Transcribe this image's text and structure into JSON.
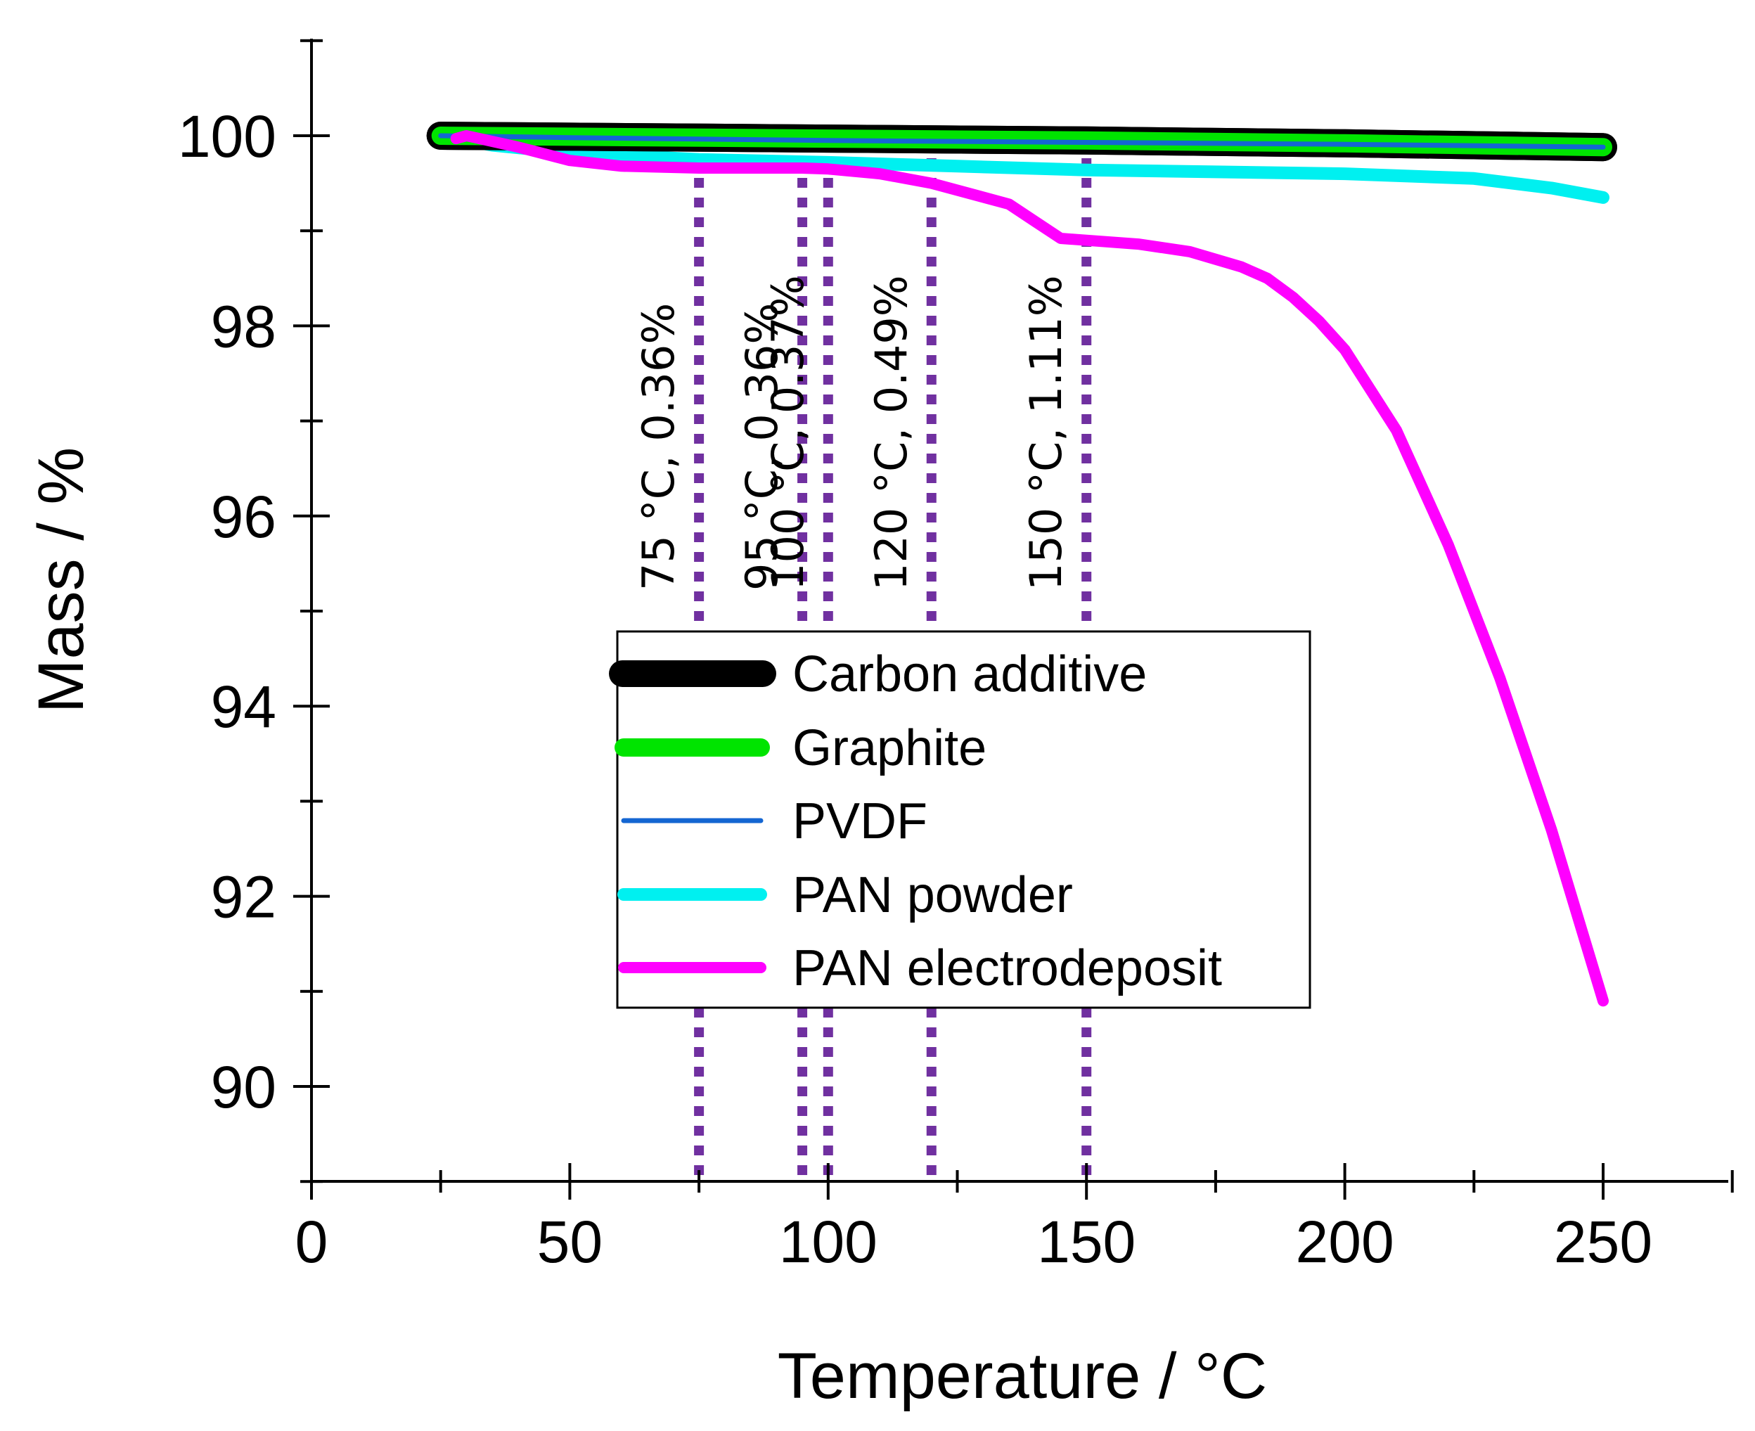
{
  "chart_data": {
    "type": "line",
    "title": "",
    "xlabel": "Temperature / ",
    "xlabel_unit": "°C",
    "ylabel": "Mass / %",
    "xlim": [
      0,
      275
    ],
    "ylim": [
      89,
      101
    ],
    "xticks": [
      0,
      50,
      100,
      150,
      200,
      250
    ],
    "yticks": [
      90,
      92,
      94,
      96,
      98,
      100
    ],
    "grid": false,
    "legend_position": "center",
    "series": [
      {
        "name": "Carbon additive",
        "color": "#000000",
        "x": [
          25,
          50,
          100,
          150,
          200,
          250
        ],
        "y": [
          100.0,
          99.99,
          99.97,
          99.95,
          99.92,
          99.88
        ]
      },
      {
        "name": "Graphite",
        "color": "#00e400",
        "x": [
          25,
          50,
          100,
          150,
          200,
          250
        ],
        "y": [
          100.0,
          99.99,
          99.97,
          99.95,
          99.92,
          99.88
        ]
      },
      {
        "name": "PVDF",
        "color": "#1466d2",
        "x": [
          25,
          50,
          100,
          150,
          200,
          250
        ],
        "y": [
          100.0,
          99.98,
          99.95,
          99.93,
          99.91,
          99.88
        ]
      },
      {
        "name": "PAN powder",
        "color": "#00f0f0",
        "x": [
          25,
          35,
          50,
          75,
          100,
          125,
          150,
          175,
          200,
          225,
          240,
          250
        ],
        "y": [
          100.0,
          99.9,
          99.82,
          99.75,
          99.72,
          99.68,
          99.64,
          99.62,
          99.6,
          99.55,
          99.45,
          99.35
        ]
      },
      {
        "name": "PAN electrodeposit",
        "color": "#ff00ff",
        "x": [
          28,
          30,
          40,
          50,
          60,
          75,
          95,
          100,
          110,
          120,
          135,
          140,
          145,
          150,
          160,
          170,
          180,
          185,
          190,
          195,
          200,
          210,
          220,
          230,
          240,
          250
        ],
        "y": [
          99.97,
          100.0,
          99.88,
          99.74,
          99.68,
          99.66,
          99.66,
          99.65,
          99.6,
          99.5,
          99.28,
          99.1,
          98.92,
          98.9,
          98.86,
          98.78,
          98.62,
          98.5,
          98.3,
          98.05,
          97.75,
          96.9,
          95.7,
          94.3,
          92.7,
          90.9
        ]
      }
    ],
    "annotations": [
      {
        "x": 75,
        "label": "75 °C, 0.36%"
      },
      {
        "x": 95,
        "label": "95 °C, 0.36%"
      },
      {
        "x": 100,
        "label": "100 °C, 0.37%"
      },
      {
        "x": 120,
        "label": "120 °C, 0.49%"
      },
      {
        "x": 150,
        "label": "150 °C, 1.11%"
      }
    ],
    "annotation_color": "#7030a0"
  }
}
